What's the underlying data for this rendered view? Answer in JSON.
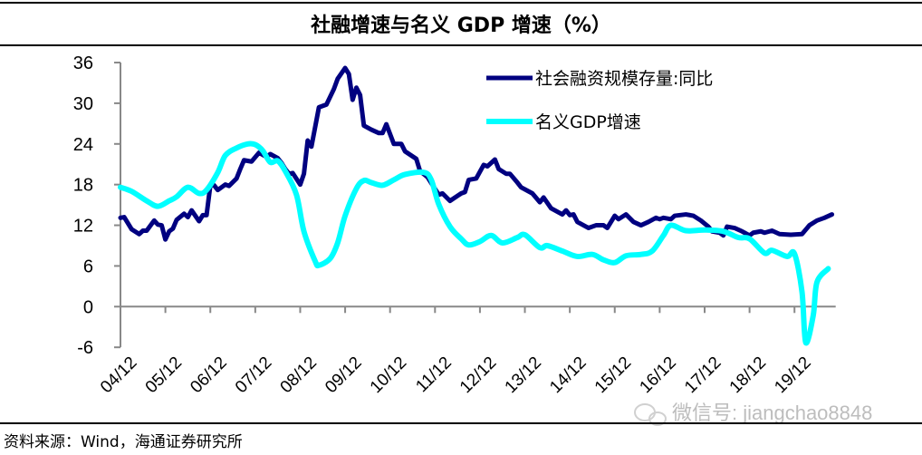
{
  "chart_data": {
    "type": "line",
    "title": "社融增速与名义 GDP 增速（%）",
    "xlabel": "",
    "ylabel": "",
    "ylim": [
      -6,
      36
    ],
    "yticks": [
      36,
      30,
      24,
      18,
      12,
      6,
      0,
      -6
    ],
    "xlim": [
      "2004-12",
      "2020-11"
    ],
    "xtick_labels": [
      "04/12",
      "05/12",
      "06/12",
      "07/12",
      "08/12",
      "09/12",
      "10/12",
      "11/12",
      "12/12",
      "13/12",
      "14/12",
      "15/12",
      "16/12",
      "17/12",
      "18/12",
      "19/12"
    ],
    "grid": false,
    "legend_placement": "top-right",
    "series": [
      {
        "name": "社会融资规模存量:同比",
        "color": "#000080",
        "x": [
          "2004-12",
          "2005-01",
          "2005-03",
          "2005-05",
          "2005-06",
          "2005-07",
          "2005-09",
          "2005-10",
          "2005-11",
          "2005-12",
          "2006-01",
          "2006-02",
          "2006-03",
          "2006-05",
          "2006-06",
          "2006-07",
          "2006-09",
          "2006-10",
          "2006-11",
          "2006-12",
          "2007-01",
          "2007-02",
          "2007-04",
          "2007-05",
          "2007-07",
          "2007-08",
          "2007-09",
          "2007-11",
          "2008-01",
          "2008-03",
          "2008-04",
          "2008-06",
          "2008-07",
          "2008-08",
          "2008-09",
          "2008-10",
          "2008-12",
          "2009-01",
          "2009-02",
          "2009-03",
          "2009-05",
          "2009-07",
          "2009-09",
          "2009-10",
          "2009-12",
          "2010-01",
          "2010-02",
          "2010-03",
          "2010-04",
          "2010-05",
          "2010-07",
          "2010-09",
          "2010-10",
          "2010-11",
          "2011-01",
          "2011-03",
          "2011-04",
          "2011-07",
          "2011-08",
          "2011-10",
          "2012-01",
          "2012-02",
          "2012-04",
          "2012-07",
          "2012-08",
          "2012-09",
          "2012-11",
          "2013-01",
          "2013-02",
          "2013-04",
          "2013-05",
          "2013-07",
          "2013-08",
          "2013-10",
          "2013-11",
          "2014-02",
          "2014-04",
          "2014-05",
          "2014-07",
          "2014-10",
          "2014-11",
          "2014-12",
          "2015-01",
          "2015-02",
          "2015-05",
          "2015-07",
          "2015-09",
          "2015-10",
          "2015-12",
          "2016-01",
          "2016-03",
          "2016-05",
          "2016-07",
          "2016-09",
          "2016-11",
          "2016-12",
          "2017-01",
          "2017-03",
          "2017-04",
          "2017-07",
          "2017-09",
          "2017-11",
          "2018-01",
          "2018-02",
          "2018-04",
          "2018-05",
          "2018-06",
          "2018-08",
          "2018-10",
          "2018-12",
          "2019-01",
          "2019-03",
          "2019-04",
          "2019-06",
          "2019-08",
          "2019-11",
          "2020-02",
          "2020-04",
          "2020-06",
          "2020-08",
          "2020-10"
        ],
        "values": [
          13.1,
          13.2,
          11.4,
          10.7,
          11.2,
          11.2,
          12.7,
          12.1,
          12.0,
          9.9,
          11.1,
          11.5,
          12.8,
          13.7,
          13.2,
          14.2,
          12.6,
          13.5,
          13.5,
          17.9,
          17.9,
          17.2,
          18.0,
          17.8,
          18.9,
          20.3,
          21.6,
          21.4,
          22.7,
          22.1,
          22.5,
          21.9,
          21.2,
          20.3,
          19.6,
          19.7,
          18.0,
          19.6,
          24.5,
          23.6,
          29.4,
          29.8,
          32.1,
          33.6,
          35.2,
          34.3,
          30.5,
          32.3,
          31.2,
          26.7,
          26.1,
          25.6,
          25.6,
          26.9,
          24.0,
          24.0,
          22.9,
          21.8,
          20.0,
          19.1,
          16.5,
          16.7,
          15.6,
          16.7,
          16.9,
          18.7,
          18.9,
          20.9,
          20.7,
          21.7,
          20.3,
          19.6,
          19.6,
          18.3,
          17.6,
          16.7,
          15.4,
          16.1,
          14.5,
          13.6,
          14.2,
          13.5,
          13.6,
          12.5,
          11.6,
          12.0,
          12.0,
          11.6,
          13.4,
          12.9,
          13.6,
          12.5,
          12.0,
          12.5,
          13.1,
          12.9,
          13.1,
          12.9,
          13.4,
          13.6,
          13.4,
          12.7,
          11.8,
          11.1,
          10.9,
          10.5,
          11.8,
          11.6,
          11.1,
          10.5,
          10.9,
          11.1,
          10.9,
          11.2,
          10.7,
          10.6,
          10.7,
          12.0,
          12.7,
          13.1,
          13.6
        ]
      },
      {
        "name": "名义GDP增速",
        "color": "#00FFFF",
        "x": [
          "2004-12",
          "2005-03",
          "2005-07",
          "2005-10",
          "2006-01",
          "2006-03",
          "2006-06",
          "2006-09",
          "2006-11",
          "2007-02",
          "2007-04",
          "2007-07",
          "2007-10",
          "2007-12",
          "2008-02",
          "2008-04",
          "2008-06",
          "2008-08",
          "2008-11",
          "2009-01",
          "2009-04",
          "2009-05",
          "2009-08",
          "2009-10",
          "2009-12",
          "2010-03",
          "2010-05",
          "2010-07",
          "2010-10",
          "2011-01",
          "2011-04",
          "2011-09",
          "2011-11",
          "2012-01",
          "2012-04",
          "2012-07",
          "2012-09",
          "2012-12",
          "2013-03",
          "2013-06",
          "2013-10",
          "2013-12",
          "2014-04",
          "2014-06",
          "2014-10",
          "2015-02",
          "2015-06",
          "2015-09",
          "2015-12",
          "2016-03",
          "2016-07",
          "2016-10",
          "2017-01",
          "2017-03",
          "2017-07",
          "2017-12",
          "2018-05",
          "2018-09",
          "2018-12",
          "2019-04",
          "2019-06",
          "2019-10",
          "2019-12",
          "2020-02",
          "2020-03",
          "2020-05",
          "2020-06",
          "2020-09"
        ],
        "values": [
          17.6,
          17.0,
          15.6,
          14.8,
          15.6,
          16.2,
          17.6,
          16.7,
          17.2,
          19.8,
          22.3,
          23.4,
          24.0,
          23.9,
          23.0,
          21.3,
          21.5,
          20.0,
          16.5,
          11.1,
          6.7,
          6.1,
          7.1,
          9.4,
          13.4,
          17.4,
          18.6,
          18.3,
          17.9,
          18.7,
          19.5,
          19.8,
          18.7,
          15.1,
          11.8,
          10.0,
          9.1,
          9.6,
          10.5,
          9.4,
          10.2,
          10.6,
          8.7,
          9.0,
          8.2,
          7.4,
          7.7,
          6.9,
          6.5,
          7.5,
          7.7,
          8.2,
          10.5,
          12.0,
          11.2,
          11.3,
          11.1,
          10.2,
          10.0,
          7.9,
          8.3,
          7.4,
          7.8,
          2.2,
          -5.3,
          -1.3,
          3.6,
          5.6
        ]
      }
    ]
  },
  "source": "资料来源：Wind，海通证券研究所",
  "watermark": {
    "text": "微信号: jiangchao8848",
    "icon": "wechat-icon"
  }
}
